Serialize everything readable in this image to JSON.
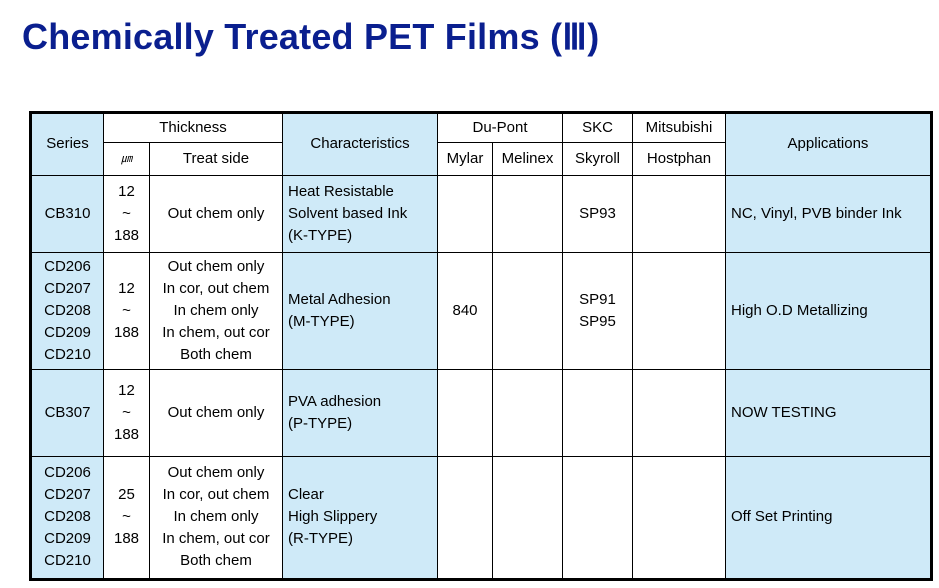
{
  "title": "Chemically Treated PET Films (Ⅲ)",
  "headers": {
    "series": "Series",
    "thickness": "Thickness",
    "unit": "㎛",
    "treat_side": "Treat side",
    "characteristics": "Characteristics",
    "dupont": "Du-Pont",
    "mylar": "Mylar",
    "melinex": "Melinex",
    "skc": "SKC",
    "skyroll": "Skyroll",
    "mitsubishi": "Mitsubishi",
    "hostphan": "Hostphan",
    "applications": "Applications"
  },
  "rows": [
    {
      "series": "CB310",
      "thickness": "12\n~\n188",
      "treat_side": "Out chem only",
      "characteristics": "Heat Resistable\nSolvent based Ink\n(K-TYPE)",
      "mylar": "",
      "melinex": "",
      "skyroll": "SP93",
      "hostphan": "",
      "applications": "NC, Vinyl, PVB binder Ink"
    },
    {
      "series": "CD206\nCD207\nCD208\nCD209\nCD210",
      "thickness": "12\n~\n188",
      "treat_side": "Out chem only\nIn cor, out chem\nIn chem only\nIn chem, out cor\nBoth chem",
      "characteristics": "Metal Adhesion\n(M-TYPE)",
      "mylar": "840",
      "melinex": "",
      "skyroll": "SP91\nSP95",
      "hostphan": "",
      "applications": "High O.D Metallizing"
    },
    {
      "series": "CB307",
      "thickness": "12\n~\n188",
      "treat_side": "Out chem only",
      "characteristics": "PVA adhesion\n(P-TYPE)",
      "mylar": "",
      "melinex": "",
      "skyroll": "",
      "hostphan": "",
      "applications": "NOW TESTING"
    },
    {
      "series": "CD206\nCD207\nCD208\nCD209\nCD210",
      "thickness": "25\n~\n188",
      "treat_side": "Out chem only\nIn cor, out chem\nIn chem only\nIn chem, out cor\nBoth chem",
      "characteristics": "Clear\nHigh Slippery\n(R-TYPE)",
      "mylar": "",
      "melinex": "",
      "skyroll": "",
      "hostphan": "",
      "applications": "Off Set Printing"
    }
  ]
}
